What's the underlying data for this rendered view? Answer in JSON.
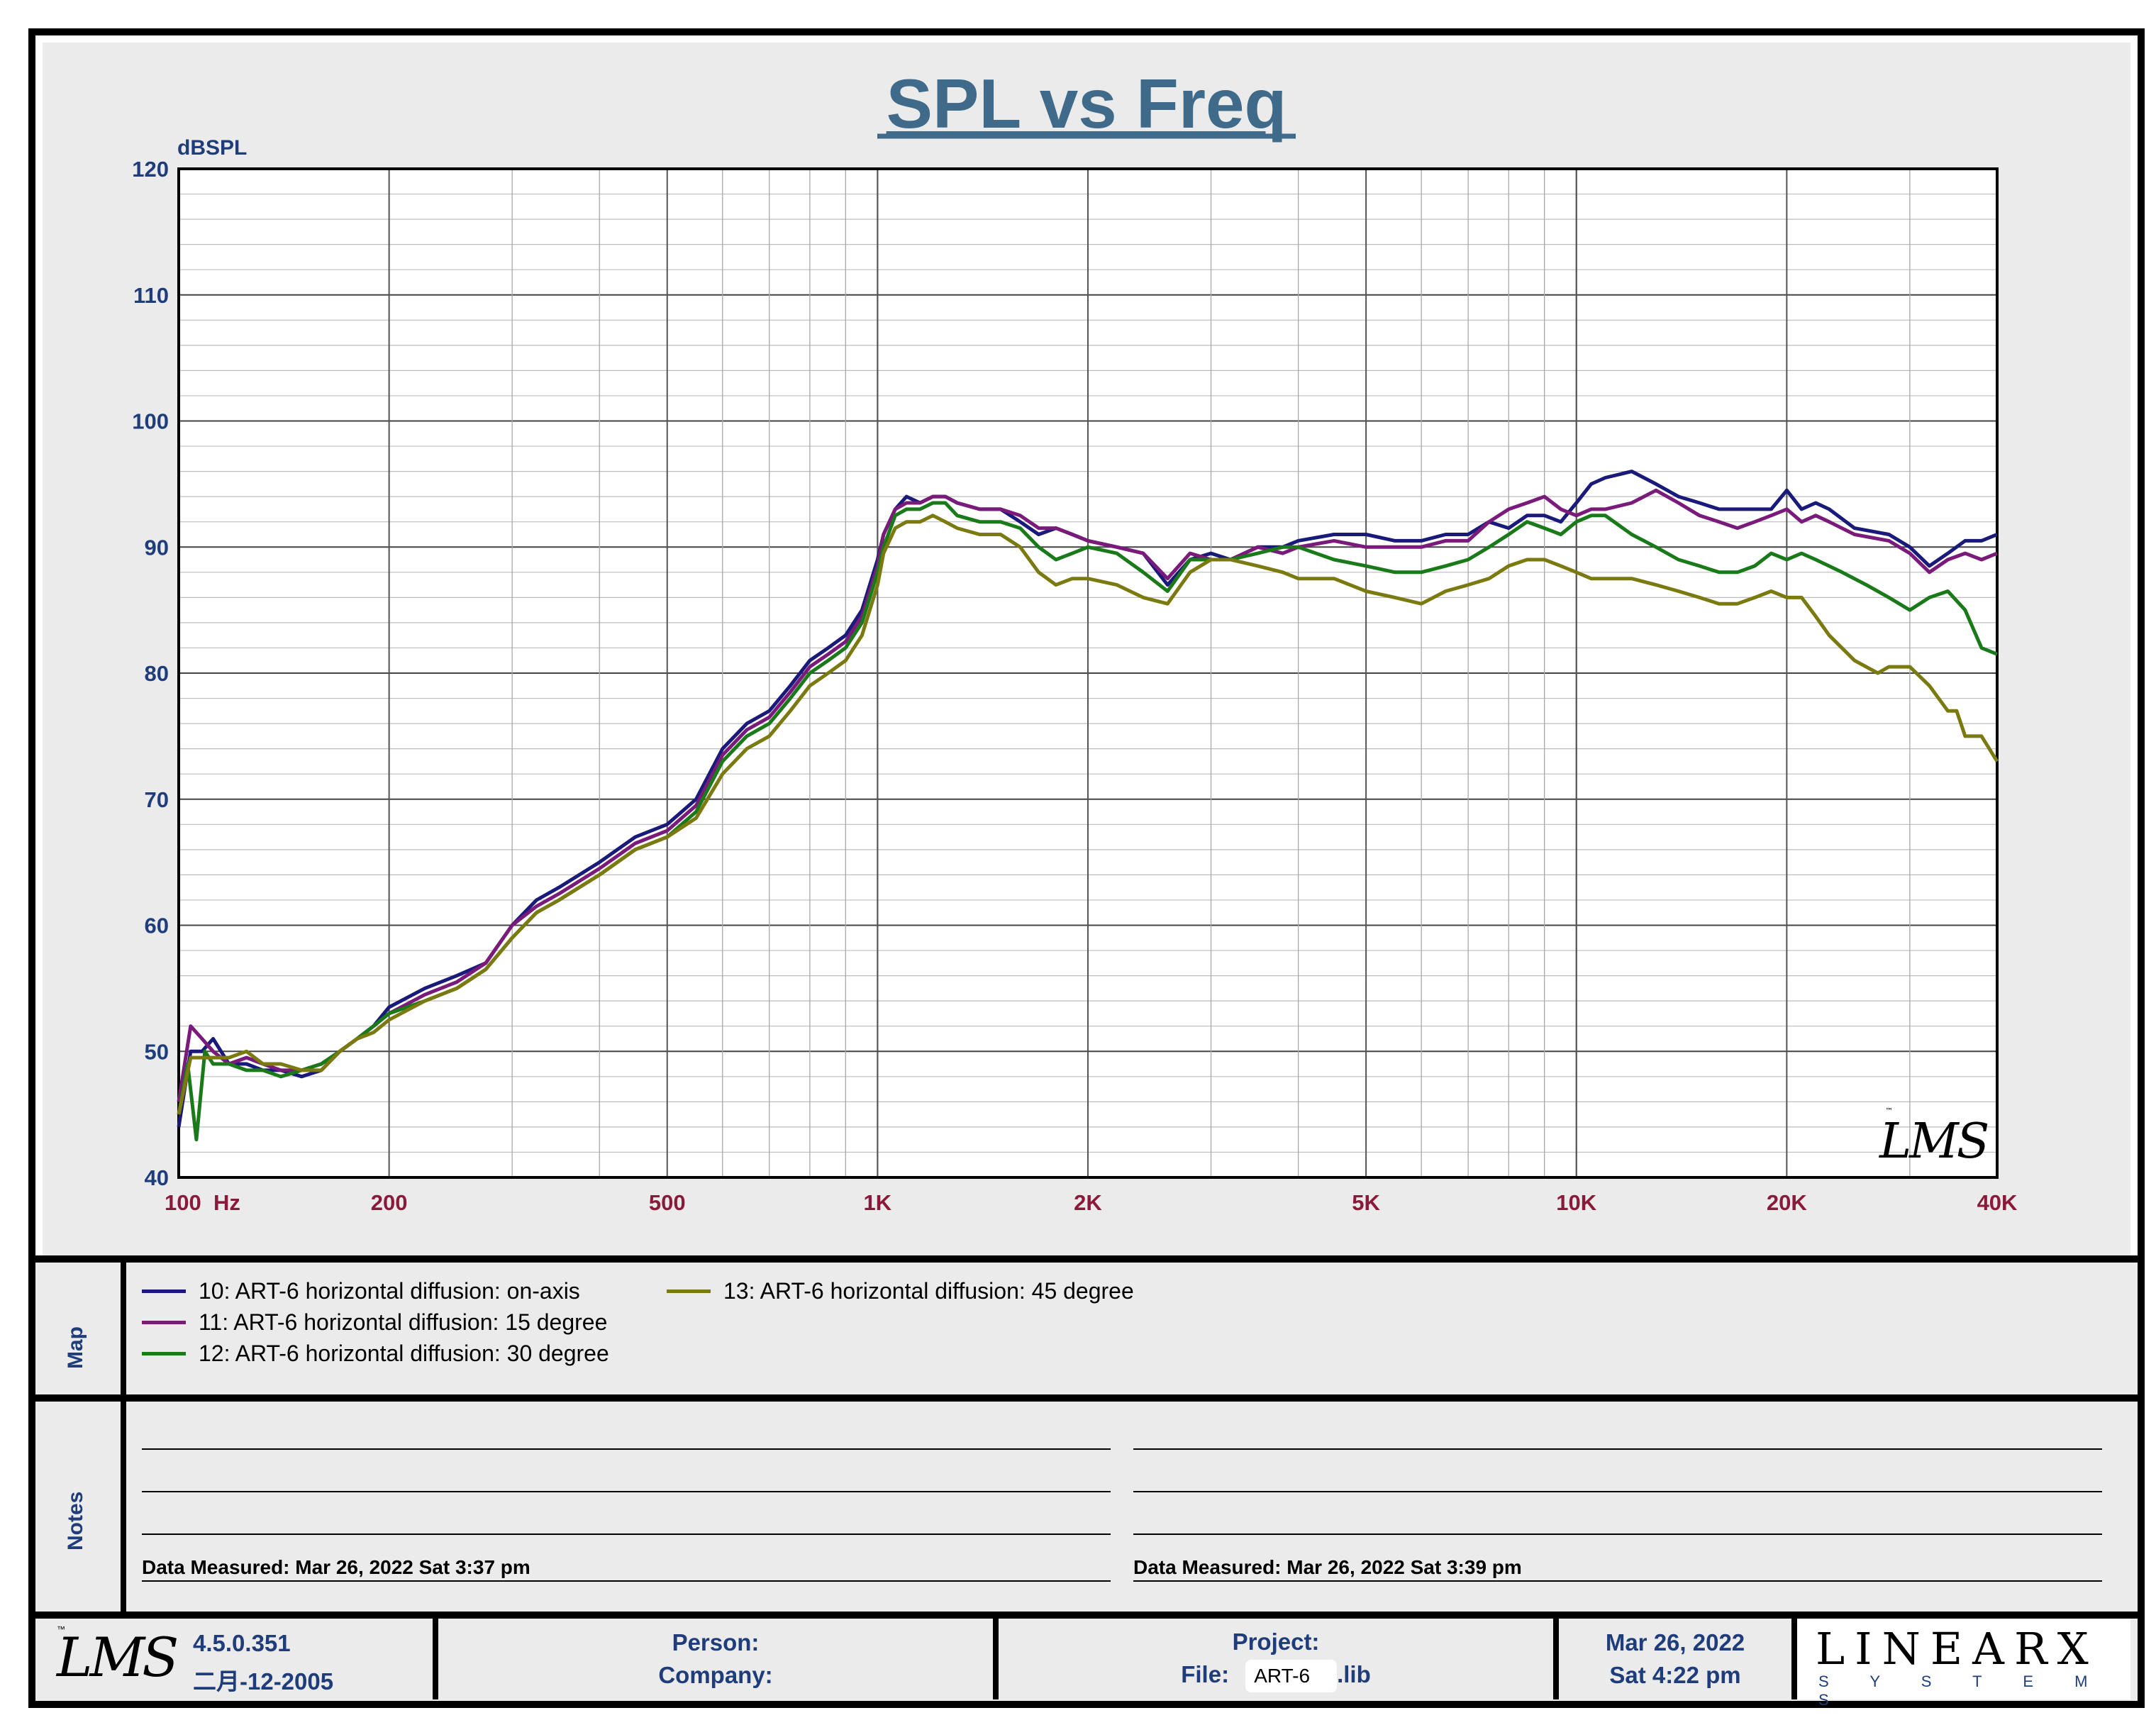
{
  "chart_data": {
    "type": "line",
    "title": "SPL vs Freq",
    "ylabel": "dBSPL",
    "xlabel": "",
    "xscale": "log",
    "xlim": [
      100,
      40000
    ],
    "ylim": [
      40,
      120
    ],
    "yticks": [
      40,
      50,
      60,
      70,
      80,
      90,
      100,
      110,
      120
    ],
    "xticks": [
      {
        "value": 100,
        "label": "100  Hz"
      },
      {
        "value": 200,
        "label": "200"
      },
      {
        "value": 500,
        "label": "500"
      },
      {
        "value": 1000,
        "label": "1K"
      },
      {
        "value": 2000,
        "label": "2K"
      },
      {
        "value": 5000,
        "label": "5K"
      },
      {
        "value": 10000,
        "label": "10K"
      },
      {
        "value": 20000,
        "label": "20K"
      },
      {
        "value": 40000,
        "label": "40K"
      }
    ],
    "grid": true,
    "watermark": "LMS",
    "series": [
      {
        "name": "10: ART-6 horizontal diffusion: on-axis",
        "color": "#1a1a7a",
        "x": [
          100,
          104,
          108,
          112,
          118,
          125,
          132,
          140,
          150,
          160,
          170,
          180,
          190,
          200,
          225,
          250,
          275,
          300,
          325,
          350,
          400,
          450,
          500,
          550,
          600,
          650,
          700,
          750,
          800,
          850,
          900,
          950,
          1000,
          1020,
          1060,
          1100,
          1150,
          1200,
          1250,
          1300,
          1400,
          1500,
          1600,
          1700,
          1800,
          1900,
          2000,
          2200,
          2400,
          2600,
          2800,
          3000,
          3200,
          3500,
          3800,
          4000,
          4500,
          5000,
          5500,
          6000,
          6500,
          7000,
          7500,
          8000,
          8500,
          9000,
          9500,
          10000,
          10500,
          11000,
          12000,
          13000,
          14000,
          15000,
          16000,
          17000,
          18000,
          19000,
          20000,
          21000,
          22000,
          23000,
          25000,
          28000,
          30000,
          32000,
          34000,
          36000,
          38000,
          40000
        ],
        "y": [
          44,
          50,
          50,
          51,
          49,
          49,
          48.5,
          48.5,
          48,
          48.5,
          50,
          51,
          52,
          53.5,
          55,
          56,
          57,
          60,
          62,
          63,
          65,
          67,
          68,
          70,
          74,
          76,
          77,
          79,
          81,
          82,
          83,
          85,
          89,
          91,
          93,
          94,
          93.5,
          94,
          94,
          93.5,
          93,
          93,
          92,
          91,
          91.5,
          91,
          90.5,
          90,
          89.5,
          87,
          89,
          89.5,
          89,
          90,
          90,
          90.5,
          91,
          91,
          90.5,
          90.5,
          91,
          91,
          92,
          91.5,
          92.5,
          92.5,
          92,
          93.5,
          95,
          95.5,
          96,
          95,
          94,
          93.5,
          93,
          93,
          93,
          93,
          94.5,
          93,
          93.5,
          93,
          91.5,
          91,
          90,
          88.5,
          89.5,
          90.5,
          90.5,
          91
        ]
      },
      {
        "name": "11: ART-6 horizontal diffusion: 15 degree",
        "color": "#7a1a7a",
        "x": [
          100,
          104,
          108,
          112,
          118,
          125,
          132,
          140,
          150,
          160,
          170,
          180,
          190,
          200,
          225,
          250,
          275,
          300,
          325,
          350,
          400,
          450,
          500,
          550,
          600,
          650,
          700,
          750,
          800,
          850,
          900,
          950,
          1000,
          1020,
          1060,
          1100,
          1150,
          1200,
          1250,
          1300,
          1400,
          1500,
          1600,
          1700,
          1800,
          1900,
          2000,
          2200,
          2400,
          2600,
          2800,
          3000,
          3200,
          3500,
          3800,
          4000,
          4500,
          5000,
          5500,
          6000,
          6500,
          7000,
          7500,
          8000,
          8500,
          9000,
          9500,
          10000,
          10500,
          11000,
          12000,
          13000,
          14000,
          15000,
          16000,
          17000,
          18000,
          19000,
          20000,
          21000,
          22000,
          23000,
          25000,
          28000,
          30000,
          32000,
          34000,
          36000,
          38000,
          40000
        ],
        "y": [
          46,
          52,
          51,
          50,
          49,
          49.5,
          49,
          48.5,
          48.5,
          49,
          50,
          51,
          52,
          53,
          54.5,
          55.5,
          57,
          60,
          61.5,
          62.5,
          64.5,
          66.5,
          67.5,
          69.5,
          73.5,
          75.5,
          76.5,
          78.5,
          80.5,
          81.5,
          82.5,
          84.5,
          88.5,
          91,
          93,
          93.5,
          93.5,
          94,
          94,
          93.5,
          93,
          93,
          92.5,
          91.5,
          91.5,
          91,
          90.5,
          90,
          89.5,
          87.5,
          89.5,
          89,
          89,
          90,
          89.5,
          90,
          90.5,
          90,
          90,
          90,
          90.5,
          90.5,
          92,
          93,
          93.5,
          94,
          93,
          92.5,
          93,
          93,
          93.5,
          94.5,
          93.5,
          92.5,
          92,
          91.5,
          92,
          92.5,
          93,
          92,
          92.5,
          92,
          91,
          90.5,
          89.5,
          88,
          89,
          89.5,
          89,
          89.5
        ]
      },
      {
        "name": "12: ART-6 horizontal diffusion: 30 degree",
        "color": "#1a7a1a",
        "x": [
          100,
          103,
          106,
          109,
          112,
          118,
          125,
          132,
          140,
          150,
          160,
          170,
          180,
          190,
          200,
          225,
          250,
          275,
          300,
          325,
          350,
          400,
          450,
          500,
          550,
          600,
          650,
          700,
          750,
          800,
          850,
          900,
          950,
          1000,
          1020,
          1060,
          1100,
          1150,
          1200,
          1250,
          1300,
          1400,
          1500,
          1600,
          1700,
          1800,
          1900,
          2000,
          2200,
          2400,
          2600,
          2800,
          3000,
          3200,
          3500,
          3800,
          4000,
          4500,
          5000,
          5500,
          6000,
          6500,
          7000,
          7500,
          8000,
          8500,
          9000,
          9500,
          10000,
          10500,
          11000,
          12000,
          13000,
          14000,
          15000,
          16000,
          17000,
          18000,
          19000,
          20000,
          21000,
          22000,
          24000,
          26000,
          28000,
          30000,
          32000,
          34000,
          36000,
          38000,
          40000
        ],
        "y": [
          45,
          49,
          43,
          50,
          49,
          49,
          48.5,
          48.5,
          48,
          48.5,
          49,
          50,
          51,
          52,
          53,
          54,
          55,
          56.5,
          59,
          61,
          62,
          64,
          66,
          67,
          69,
          73,
          75,
          76,
          78,
          80,
          81,
          82,
          84,
          88,
          90,
          92.5,
          93,
          93,
          93.5,
          93.5,
          92.5,
          92,
          92,
          91.5,
          90,
          89,
          89.5,
          90,
          89.5,
          88,
          86.5,
          89,
          89,
          89,
          89.5,
          90,
          90,
          89,
          88.5,
          88,
          88,
          88.5,
          89,
          90,
          91,
          92,
          91.5,
          91,
          92,
          92.5,
          92.5,
          91,
          90,
          89,
          88.5,
          88,
          88,
          88.5,
          89.5,
          89,
          89.5,
          89,
          88,
          87,
          86,
          85,
          86,
          86.5,
          85,
          82,
          81.5
        ]
      },
      {
        "name": "13: ART-6 horizontal diffusion: 45 degree",
        "color": "#7a7a10",
        "x": [
          100,
          104,
          108,
          112,
          118,
          125,
          132,
          140,
          150,
          160,
          170,
          180,
          190,
          200,
          225,
          250,
          275,
          300,
          325,
          350,
          400,
          450,
          500,
          550,
          600,
          650,
          700,
          750,
          800,
          850,
          900,
          950,
          1000,
          1020,
          1060,
          1100,
          1150,
          1200,
          1250,
          1300,
          1400,
          1500,
          1600,
          1700,
          1800,
          1900,
          2000,
          2200,
          2400,
          2600,
          2800,
          3000,
          3200,
          3500,
          3800,
          4000,
          4500,
          5000,
          5500,
          6000,
          6500,
          7000,
          7500,
          8000,
          8500,
          9000,
          9500,
          10000,
          10500,
          11000,
          12000,
          13000,
          14000,
          15000,
          16000,
          17000,
          18000,
          19000,
          20000,
          21000,
          22000,
          23000,
          25000,
          27000,
          28000,
          30000,
          32000,
          34000,
          35000,
          36000,
          38000,
          40000
        ],
        "y": [
          45,
          49.5,
          49.5,
          49.5,
          49.5,
          50,
          49,
          49,
          48.5,
          48.5,
          50,
          51,
          51.5,
          52.5,
          54,
          55,
          56.5,
          59,
          61,
          62,
          64,
          66,
          67,
          68.5,
          72,
          74,
          75,
          77,
          79,
          80,
          81,
          83,
          87,
          89.5,
          91.5,
          92,
          92,
          92.5,
          92,
          91.5,
          91,
          91,
          90,
          88,
          87,
          87.5,
          87.5,
          87,
          86,
          85.5,
          88,
          89,
          89,
          88.5,
          88,
          87.5,
          87.5,
          86.5,
          86,
          85.5,
          86.5,
          87,
          87.5,
          88.5,
          89,
          89,
          88.5,
          88,
          87.5,
          87.5,
          87.5,
          87,
          86.5,
          86,
          85.5,
          85.5,
          86,
          86.5,
          86,
          86,
          84.5,
          83,
          81,
          80,
          80.5,
          80.5,
          79,
          77,
          77,
          75,
          75,
          73
        ]
      }
    ]
  },
  "legend": {
    "label": "Map",
    "items": [
      {
        "text": "10: ART-6 horizontal diffusion: on-axis",
        "color": "#1a1a7a"
      },
      {
        "text": "11: ART-6 horizontal diffusion: 15 degree",
        "color": "#7a1a7a"
      },
      {
        "text": "12: ART-6 horizontal diffusion: 30 degree",
        "color": "#1a7a1a"
      },
      {
        "text": "13: ART-6 horizontal diffusion: 45 degree",
        "color": "#7a7a10"
      }
    ]
  },
  "notes": {
    "label": "Notes",
    "left_measured": "Data Measured: Mar 26, 2022  Sat  3:37 pm",
    "right_measured": "Data Measured: Mar 26, 2022  Sat  3:39 pm"
  },
  "footer": {
    "lms_logo": "LMS",
    "version": "4.5.0.351",
    "build_date": "二月-12-2005",
    "person_label": "Person:",
    "company_label": "Company:",
    "project_label": "Project:",
    "file_label": "File:",
    "file_name": "ART-6",
    "file_ext": ".lib",
    "date": "Mar 26, 2022",
    "day_time": "Sat  4:22 pm",
    "brand": "LINEARX",
    "brand_sub": "S Y S T E M S"
  },
  "colors": {
    "title": "#3f6a8a",
    "axis_y_labels": "#1f3d7a",
    "axis_x_labels": "#8a1a3a",
    "panel_bg": "#ebebeb"
  }
}
